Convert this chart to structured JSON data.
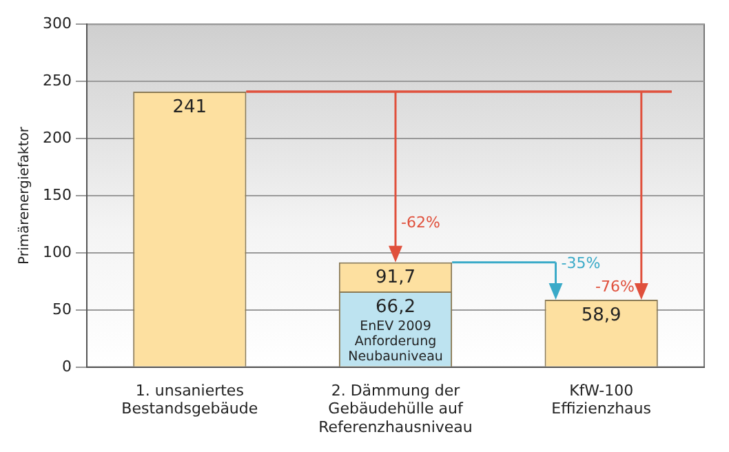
{
  "chart_data": {
    "type": "bar",
    "ylabel": "Primärenergiefaktor",
    "categories": [
      "1. unsaniertes Bestandsgebäude",
      "2. Dämmung der Gebäudehülle auf Referenzhausniveau",
      "KfW-100 Effizienzhaus"
    ],
    "series": [
      {
        "color": "#fde0a0",
        "values": [
          241,
          91.7,
          58.9
        ],
        "value_labels": [
          "241",
          "91,7",
          "58,9"
        ]
      },
      {
        "name": "EnEV 2009 Anforderung Neubauniveau",
        "color": "#bde3f0",
        "values": [
          null,
          66.2,
          null
        ],
        "value_labels": [
          null,
          "66,2",
          null
        ]
      }
    ],
    "annotations": [
      {
        "text": "-62%",
        "x": "2. Dämmung der Gebäudehülle auf Referenzhausniveau",
        "y": 91.7
      },
      {
        "text": "-35%",
        "x": "KfW-100 Effizienzhaus",
        "y": 58.9
      },
      {
        "text": "-76%",
        "x": "KfW-100 Effizienzhaus",
        "y": 58.9
      }
    ],
    "ref_lines": [
      {
        "axis": "y",
        "value": 241,
        "color": "#e0503c"
      },
      {
        "axis": "y",
        "value": 91.7,
        "color": "#3aaac8"
      }
    ],
    "ylim": [
      0,
      300
    ],
    "yticks": [
      0,
      50,
      100,
      150,
      200,
      250,
      300
    ],
    "grid": "y",
    "legend": false
  }
}
